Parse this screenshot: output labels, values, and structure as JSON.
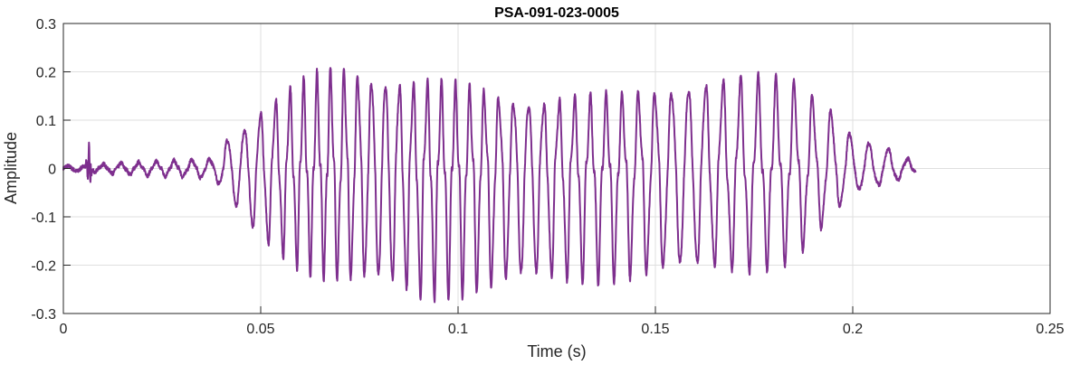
{
  "chart_data": {
    "type": "line",
    "title": "PSA-091-023-0005",
    "xlabel": "Time (s)",
    "ylabel": "Amplitude",
    "xlim": [
      0,
      0.25
    ],
    "ylim": [
      -0.3,
      0.3
    ],
    "xticks": [
      0,
      0.05,
      0.1,
      0.15,
      0.2,
      0.25
    ],
    "xtick_labels": [
      "0",
      "0.05",
      "0.1",
      "0.15",
      "0.2",
      "0.25"
    ],
    "yticks": [
      -0.3,
      -0.2,
      -0.1,
      0,
      0.1,
      0.2,
      0.3
    ],
    "ytick_labels": [
      "-0.3",
      "-0.2",
      "-0.1",
      "0",
      "0.1",
      "0.2",
      "0.3"
    ],
    "grid": true,
    "series_color": "#7E2F8E",
    "signal_end": 0.216,
    "envelope": [
      {
        "t": 0.0,
        "pos": 0.005,
        "neg": -0.005
      },
      {
        "t": 0.038,
        "pos": 0.02,
        "neg": -0.02
      },
      {
        "t": 0.041,
        "pos": 0.06,
        "neg": -0.05
      },
      {
        "t": 0.045,
        "pos": 0.08,
        "neg": -0.1
      },
      {
        "t": 0.05,
        "pos": 0.12,
        "neg": -0.15
      },
      {
        "t": 0.06,
        "pos": 0.17,
        "neg": -0.2
      },
      {
        "t": 0.07,
        "pos": 0.2,
        "neg": -0.22
      },
      {
        "t": 0.08,
        "pos": 0.19,
        "neg": -0.24
      },
      {
        "t": 0.09,
        "pos": 0.17,
        "neg": -0.26
      },
      {
        "t": 0.1,
        "pos": 0.16,
        "neg": -0.25
      },
      {
        "t": 0.12,
        "pos": 0.14,
        "neg": -0.23
      },
      {
        "t": 0.14,
        "pos": 0.14,
        "neg": -0.22
      },
      {
        "t": 0.16,
        "pos": 0.18,
        "neg": -0.21
      },
      {
        "t": 0.175,
        "pos": 0.18,
        "neg": -0.2
      },
      {
        "t": 0.185,
        "pos": 0.17,
        "neg": -0.18
      },
      {
        "t": 0.195,
        "pos": 0.12,
        "neg": -0.1
      },
      {
        "t": 0.2,
        "pos": 0.07,
        "neg": -0.05
      },
      {
        "t": 0.21,
        "pos": 0.04,
        "neg": -0.03
      },
      {
        "t": 0.216,
        "pos": 0.01,
        "neg": -0.01
      }
    ],
    "period": [
      {
        "t": 0.0,
        "p": 0.0045
      },
      {
        "t": 0.04,
        "p": 0.0045
      },
      {
        "t": 0.06,
        "p": 0.0034
      },
      {
        "t": 0.1,
        "p": 0.0036
      },
      {
        "t": 0.15,
        "p": 0.0042
      },
      {
        "t": 0.2,
        "p": 0.0048
      },
      {
        "t": 0.216,
        "p": 0.005
      }
    ],
    "transient": {
      "t": 0.0065,
      "pos": 0.055,
      "neg": -0.04
    }
  }
}
